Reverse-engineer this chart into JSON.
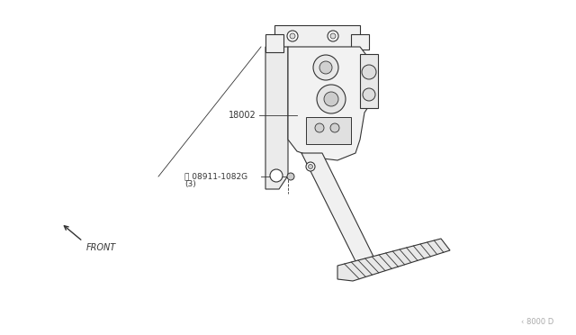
{
  "background_color": "#ffffff",
  "line_color": "#333333",
  "text_color": "#333333",
  "fig_width": 6.4,
  "fig_height": 3.72,
  "label_18002": "18002",
  "label_part": "Ⓝ 08911-1082G",
  "label_part2": "(3)",
  "label_front": "FRONT",
  "label_ref": "‹ 8000 D",
  "dpi": 100
}
